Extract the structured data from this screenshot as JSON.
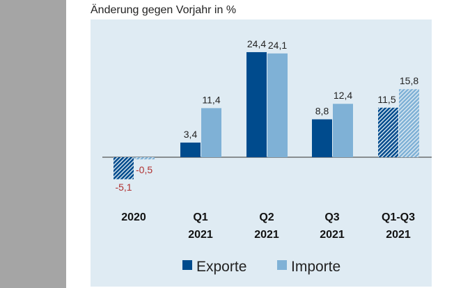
{
  "chart_data": {
    "type": "bar",
    "title": "Änderung gegen Vorjahr in %",
    "categories": [
      [
        "2020"
      ],
      [
        "Q1",
        "2021"
      ],
      [
        "Q2",
        "2021"
      ],
      [
        "Q3",
        "2021"
      ],
      [
        "Q1-Q3",
        "2021"
      ]
    ],
    "series": [
      {
        "name": "Exporte",
        "color": "#004b8d",
        "values": [
          -5.1,
          3.4,
          24.4,
          8.8,
          11.5
        ],
        "labels": [
          "-5,1",
          "3,4",
          "24,4",
          "8,8",
          "11,5"
        ]
      },
      {
        "name": "Importe",
        "color": "#7fb1d6",
        "values": [
          -0.5,
          11.4,
          24.1,
          12.4,
          15.8
        ],
        "labels": [
          "-0,5",
          "11,4",
          "24,1",
          "12,4",
          "15,8"
        ]
      }
    ],
    "hatched_categories": [
      "2020",
      "Q1-Q3 2021"
    ],
    "negative_label_color": "#b03030",
    "legend": "bottom",
    "grid": false
  }
}
